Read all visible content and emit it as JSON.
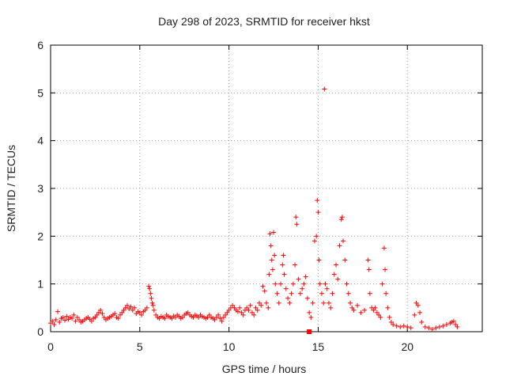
{
  "chart_data": {
    "type": "scatter",
    "title": "Day 298 of 2023, SRMTID for receiver hkst",
    "xlabel": "GPS time / hours",
    "ylabel": "SRMTID / TECUs",
    "xlim": [
      0,
      24.2
    ],
    "ylim": [
      0,
      6
    ],
    "xticks": [
      0,
      5,
      10,
      15,
      20
    ],
    "yticks": [
      0,
      1,
      2,
      3,
      4,
      5,
      6
    ],
    "x_tick_labels": [
      "0",
      "5",
      "10",
      "15",
      "20"
    ],
    "y_tick_labels": [
      "0",
      "1",
      "2",
      "3",
      "4",
      "5",
      "6"
    ],
    "grid": true,
    "marker": "+",
    "color": "#ff0000",
    "series": [
      {
        "name": "SRMTID",
        "points": [
          [
            0.0,
            0.18
          ],
          [
            0.1,
            0.22
          ],
          [
            0.2,
            0.15
          ],
          [
            0.3,
            0.25
          ],
          [
            0.4,
            0.42
          ],
          [
            0.5,
            0.2
          ],
          [
            0.6,
            0.28
          ],
          [
            0.7,
            0.3
          ],
          [
            0.8,
            0.24
          ],
          [
            0.9,
            0.32
          ],
          [
            1.0,
            0.26
          ],
          [
            1.1,
            0.3
          ],
          [
            1.2,
            0.28
          ],
          [
            1.3,
            0.35
          ],
          [
            1.4,
            0.22
          ],
          [
            1.5,
            0.3
          ],
          [
            1.6,
            0.25
          ],
          [
            1.7,
            0.2
          ],
          [
            1.8,
            0.22
          ],
          [
            1.9,
            0.25
          ],
          [
            2.0,
            0.28
          ],
          [
            2.1,
            0.3
          ],
          [
            2.2,
            0.26
          ],
          [
            2.3,
            0.22
          ],
          [
            2.4,
            0.28
          ],
          [
            2.5,
            0.3
          ],
          [
            2.6,
            0.35
          ],
          [
            2.7,
            0.4
          ],
          [
            2.8,
            0.45
          ],
          [
            2.9,
            0.38
          ],
          [
            3.0,
            0.3
          ],
          [
            3.1,
            0.25
          ],
          [
            3.2,
            0.28
          ],
          [
            3.3,
            0.3
          ],
          [
            3.4,
            0.32
          ],
          [
            3.5,
            0.35
          ],
          [
            3.6,
            0.38
          ],
          [
            3.7,
            0.3
          ],
          [
            3.8,
            0.28
          ],
          [
            3.9,
            0.35
          ],
          [
            4.0,
            0.4
          ],
          [
            4.1,
            0.45
          ],
          [
            4.2,
            0.5
          ],
          [
            4.3,
            0.55
          ],
          [
            4.4,
            0.48
          ],
          [
            4.5,
            0.52
          ],
          [
            4.6,
            0.45
          ],
          [
            4.7,
            0.5
          ],
          [
            4.8,
            0.38
          ],
          [
            4.9,
            0.42
          ],
          [
            5.0,
            0.4
          ],
          [
            5.1,
            0.35
          ],
          [
            5.2,
            0.42
          ],
          [
            5.3,
            0.45
          ],
          [
            5.4,
            0.5
          ],
          [
            5.5,
            0.95
          ],
          [
            5.55,
            0.9
          ],
          [
            5.6,
            0.8
          ],
          [
            5.65,
            0.7
          ],
          [
            5.7,
            0.6
          ],
          [
            5.75,
            0.55
          ],
          [
            5.8,
            0.45
          ],
          [
            5.9,
            0.35
          ],
          [
            6.0,
            0.3
          ],
          [
            6.1,
            0.28
          ],
          [
            6.2,
            0.32
          ],
          [
            6.3,
            0.3
          ],
          [
            6.4,
            0.28
          ],
          [
            6.5,
            0.35
          ],
          [
            6.6,
            0.32
          ],
          [
            6.7,
            0.3
          ],
          [
            6.8,
            0.28
          ],
          [
            6.9,
            0.33
          ],
          [
            7.0,
            0.3
          ],
          [
            7.1,
            0.35
          ],
          [
            7.2,
            0.32
          ],
          [
            7.3,
            0.28
          ],
          [
            7.4,
            0.3
          ],
          [
            7.5,
            0.35
          ],
          [
            7.6,
            0.38
          ],
          [
            7.7,
            0.4
          ],
          [
            7.8,
            0.35
          ],
          [
            7.9,
            0.32
          ],
          [
            8.0,
            0.3
          ],
          [
            8.1,
            0.35
          ],
          [
            8.2,
            0.33
          ],
          [
            8.3,
            0.3
          ],
          [
            8.4,
            0.35
          ],
          [
            8.5,
            0.32
          ],
          [
            8.6,
            0.3
          ],
          [
            8.7,
            0.28
          ],
          [
            8.8,
            0.3
          ],
          [
            8.9,
            0.35
          ],
          [
            9.0,
            0.3
          ],
          [
            9.1,
            0.28
          ],
          [
            9.2,
            0.25
          ],
          [
            9.3,
            0.3
          ],
          [
            9.4,
            0.35
          ],
          [
            9.5,
            0.28
          ],
          [
            9.6,
            0.22
          ],
          [
            9.7,
            0.3
          ],
          [
            9.8,
            0.35
          ],
          [
            9.9,
            0.4
          ],
          [
            10.0,
            0.45
          ],
          [
            10.1,
            0.5
          ],
          [
            10.2,
            0.55
          ],
          [
            10.3,
            0.5
          ],
          [
            10.4,
            0.45
          ],
          [
            10.5,
            0.42
          ],
          [
            10.6,
            0.5
          ],
          [
            10.7,
            0.4
          ],
          [
            10.8,
            0.35
          ],
          [
            10.9,
            0.45
          ],
          [
            11.0,
            0.5
          ],
          [
            11.1,
            0.45
          ],
          [
            11.2,
            0.55
          ],
          [
            11.3,
            0.4
          ],
          [
            11.4,
            0.35
          ],
          [
            11.5,
            0.5
          ],
          [
            11.6,
            0.45
          ],
          [
            11.7,
            0.6
          ],
          [
            11.8,
            0.55
          ],
          [
            11.9,
            0.95
          ],
          [
            12.0,
            0.85
          ],
          [
            12.1,
            0.6
          ],
          [
            12.2,
            0.5
          ],
          [
            12.25,
            1.2
          ],
          [
            12.3,
            2.05
          ],
          [
            12.35,
            1.8
          ],
          [
            12.4,
            1.5
          ],
          [
            12.45,
            1.3
          ],
          [
            12.5,
            2.08
          ],
          [
            12.55,
            1.6
          ],
          [
            12.6,
            1.0
          ],
          [
            12.7,
            0.8
          ],
          [
            12.8,
            0.6
          ],
          [
            12.9,
            1.0
          ],
          [
            13.0,
            1.4
          ],
          [
            13.05,
            1.6
          ],
          [
            13.1,
            1.2
          ],
          [
            13.2,
            0.9
          ],
          [
            13.3,
            0.7
          ],
          [
            13.4,
            0.6
          ],
          [
            13.5,
            0.8
          ],
          [
            13.6,
            1.0
          ],
          [
            13.7,
            1.4
          ],
          [
            13.75,
            2.4
          ],
          [
            13.8,
            2.25
          ],
          [
            13.9,
            1.1
          ],
          [
            14.0,
            0.8
          ],
          [
            14.1,
            0.9
          ],
          [
            14.2,
            1.0
          ],
          [
            14.3,
            1.15
          ],
          [
            14.4,
            0.7
          ],
          [
            14.5,
            0.4
          ],
          [
            14.6,
            0.3
          ],
          [
            14.7,
            0.6
          ],
          [
            14.8,
            1.9
          ],
          [
            14.9,
            2.0
          ],
          [
            14.95,
            2.75
          ],
          [
            15.0,
            2.5
          ],
          [
            15.05,
            1.5
          ],
          [
            15.1,
            1.0
          ],
          [
            15.2,
            0.8
          ],
          [
            15.3,
            0.6
          ],
          [
            15.35,
            5.08
          ],
          [
            15.4,
            1.0
          ],
          [
            15.5,
            0.9
          ],
          [
            15.6,
            0.6
          ],
          [
            15.7,
            0.5
          ],
          [
            15.8,
            0.8
          ],
          [
            15.9,
            1.2
          ],
          [
            16.0,
            1.4
          ],
          [
            16.1,
            1.1
          ],
          [
            16.2,
            1.8
          ],
          [
            16.3,
            2.35
          ],
          [
            16.35,
            2.4
          ],
          [
            16.4,
            1.9
          ],
          [
            16.5,
            1.5
          ],
          [
            16.6,
            1.0
          ],
          [
            16.7,
            0.8
          ],
          [
            16.8,
            0.6
          ],
          [
            16.9,
            0.5
          ],
          [
            17.0,
            0.45
          ],
          [
            17.2,
            0.55
          ],
          [
            17.4,
            0.4
          ],
          [
            17.6,
            0.45
          ],
          [
            17.8,
            1.5
          ],
          [
            17.85,
            1.3
          ],
          [
            17.9,
            0.8
          ],
          [
            18.0,
            0.5
          ],
          [
            18.1,
            0.45
          ],
          [
            18.2,
            0.5
          ],
          [
            18.3,
            0.4
          ],
          [
            18.4,
            0.35
          ],
          [
            18.5,
            0.3
          ],
          [
            18.6,
            1.0
          ],
          [
            18.7,
            1.75
          ],
          [
            18.75,
            1.3
          ],
          [
            18.8,
            0.8
          ],
          [
            18.9,
            0.5
          ],
          [
            19.0,
            0.3
          ],
          [
            19.1,
            0.2
          ],
          [
            19.2,
            0.15
          ],
          [
            19.4,
            0.12
          ],
          [
            19.6,
            0.1
          ],
          [
            19.8,
            0.12
          ],
          [
            20.0,
            0.1
          ],
          [
            20.2,
            0.08
          ],
          [
            20.4,
            0.35
          ],
          [
            20.5,
            0.6
          ],
          [
            20.6,
            0.55
          ],
          [
            20.7,
            0.4
          ],
          [
            20.8,
            0.2
          ],
          [
            21.0,
            0.1
          ],
          [
            21.2,
            0.08
          ],
          [
            21.4,
            0.05
          ],
          [
            21.6,
            0.08
          ],
          [
            21.8,
            0.1
          ],
          [
            22.0,
            0.12
          ],
          [
            22.2,
            0.15
          ],
          [
            22.4,
            0.18
          ],
          [
            22.5,
            0.2
          ],
          [
            22.6,
            0.22
          ],
          [
            22.7,
            0.15
          ],
          [
            22.8,
            0.1
          ]
        ]
      }
    ],
    "highlight_point": [
      14.5,
      0.0
    ]
  }
}
